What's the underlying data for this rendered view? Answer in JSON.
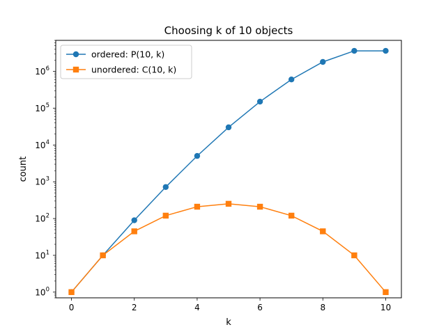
{
  "chart_data": {
    "type": "line",
    "title": "Choosing k of 10 objects",
    "xlabel": "k",
    "ylabel": "count",
    "x": [
      0,
      1,
      2,
      3,
      4,
      5,
      6,
      7,
      8,
      9,
      10
    ],
    "xlim": [
      -0.5,
      10.5
    ],
    "x_ticks": [
      0,
      2,
      4,
      6,
      8,
      10
    ],
    "y_scale": "log",
    "ylim": [
      0.7,
      7000000
    ],
    "y_tick_base": "10",
    "y_tick_exponents": [
      "0",
      "1",
      "2",
      "3",
      "4",
      "5",
      "6"
    ],
    "grid": false,
    "legend_position": "top-left",
    "series": [
      {
        "name": "ordered: P(10, k)",
        "color": "#1f77b4",
        "marker": "circle",
        "values": [
          1,
          10,
          90,
          720,
          5040,
          30240,
          151200,
          604800,
          1814400,
          3628800,
          3628800
        ]
      },
      {
        "name": "unordered: C(10, k)",
        "color": "#ff7f0e",
        "marker": "square",
        "values": [
          1,
          10,
          45,
          120,
          210,
          252,
          210,
          120,
          45,
          10,
          1
        ]
      }
    ]
  }
}
